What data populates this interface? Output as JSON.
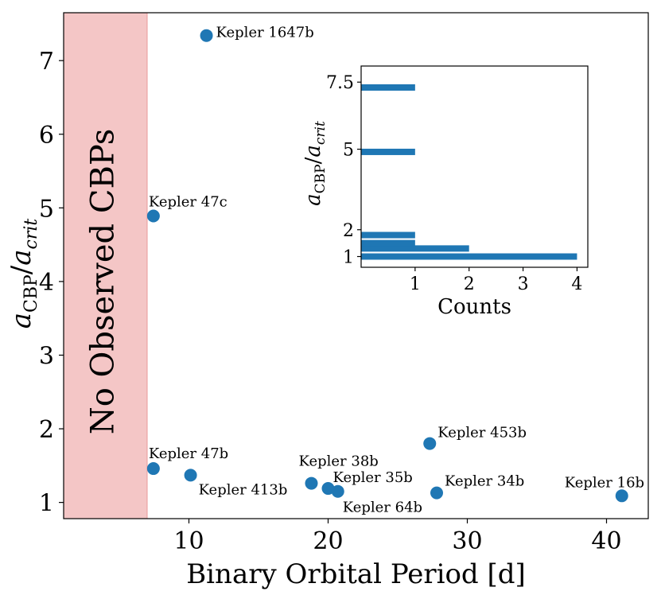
{
  "chart_data": [
    {
      "type": "scatter",
      "title": "",
      "xlabel": "Binary Orbital Period [d]",
      "ylabel": "a_CBP/a_crit",
      "ylabel_parts": {
        "main": "a",
        "sub1": "CBP",
        "slash": "/",
        "main2": "a",
        "sub2": "crit"
      },
      "xlim": [
        1,
        43
      ],
      "ylim": [
        0.78,
        7.65
      ],
      "xticks": [
        10,
        20,
        30,
        40
      ],
      "yticks": [
        1,
        2,
        3,
        4,
        5,
        6,
        7
      ],
      "grid": false,
      "marker_color": "#1f77b4",
      "shaded_region": {
        "x_start": 1,
        "x_end": 7,
        "label": "No Observed CBPs",
        "color": "#f4c6c6"
      },
      "points": [
        {
          "name": "Kepler 1647b",
          "x": 11.26,
          "y": 7.34
        },
        {
          "name": "Kepler 47c",
          "x": 7.45,
          "y": 4.89
        },
        {
          "name": "Kepler 47b",
          "x": 7.45,
          "y": 1.46
        },
        {
          "name": "Kepler 413b",
          "x": 10.12,
          "y": 1.37
        },
        {
          "name": "Kepler 38b",
          "x": 18.8,
          "y": 1.26
        },
        {
          "name": "Kepler 35b",
          "x": 20.0,
          "y": 1.19
        },
        {
          "name": "Kepler 64b",
          "x": 20.7,
          "y": 1.15
        },
        {
          "name": "Kepler 453b",
          "x": 27.3,
          "y": 1.8
        },
        {
          "name": "Kepler 34b",
          "x": 27.8,
          "y": 1.13
        },
        {
          "name": "Kepler 16b",
          "x": 41.1,
          "y": 1.09
        }
      ]
    },
    {
      "type": "bar",
      "orientation": "horizontal",
      "xlabel": "Counts",
      "ylabel": "a_CBP/a_crit",
      "xlim": [
        0,
        4.2
      ],
      "ylim": [
        0.6,
        8.1
      ],
      "xticks": [
        1,
        2,
        3,
        4
      ],
      "yticks": [
        1,
        2,
        5,
        7.5
      ],
      "yticklabels": [
        "1",
        "2",
        "5",
        "7.5"
      ],
      "color": "#1f77b4",
      "bins": [
        {
          "y": 1.0,
          "count": 4
        },
        {
          "y": 1.3,
          "count": 2
        },
        {
          "y": 1.5,
          "count": 1
        },
        {
          "y": 1.8,
          "count": 1
        },
        {
          "y": 4.9,
          "count": 1
        },
        {
          "y": 7.3,
          "count": 1
        }
      ]
    }
  ]
}
